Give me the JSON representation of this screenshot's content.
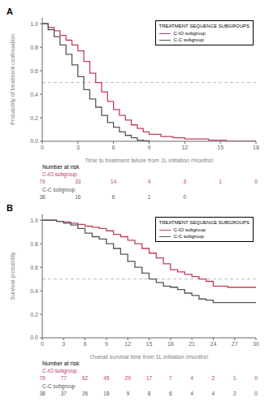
{
  "chart_data": [
    {
      "type": "line",
      "panel_label": "A",
      "title": "TREATMENT SEQUENCE SUBGROUPS",
      "xlabel": "Time to treatment failure from 1L initiation (months)",
      "ylabel": "Probability of treatment continuation",
      "xlim": [
        0,
        18
      ],
      "ylim": [
        0,
        1.05
      ],
      "xticks": [
        0,
        3,
        6,
        9,
        12,
        15,
        18
      ],
      "yticks": [
        {
          "value": 0.0,
          "label": "0.0"
        },
        {
          "value": 0.2,
          "label": "0.2"
        },
        {
          "value": 0.4,
          "label": "0.4"
        },
        {
          "value": 0.6,
          "label": "0.6"
        },
        {
          "value": 0.8,
          "label": "0.8"
        },
        {
          "value": 1.0,
          "label": "1.0"
        }
      ],
      "grid": false,
      "legend": "upper right",
      "line_style": "step",
      "hline": 0.5,
      "series": [
        {
          "name": "C-IO subgroup",
          "color": "#c0405a",
          "x": [
            0,
            0.5,
            1.0,
            1.5,
            2.0,
            2.5,
            3.0,
            3.5,
            4.0,
            4.5,
            5.0,
            5.5,
            6.0,
            6.5,
            7.0,
            7.5,
            8.0,
            8.5,
            9.0,
            10.0,
            11.0,
            12.0,
            13.0,
            14.0,
            15.0,
            15.5,
            18.0
          ],
          "values": [
            1.0,
            0.97,
            0.94,
            0.9,
            0.86,
            0.82,
            0.77,
            0.68,
            0.58,
            0.5,
            0.42,
            0.34,
            0.27,
            0.22,
            0.18,
            0.14,
            0.11,
            0.08,
            0.06,
            0.04,
            0.03,
            0.02,
            0.02,
            0.01,
            0.01,
            0.0,
            0.0
          ]
        },
        {
          "name": "C-C subgroup",
          "color": "#555555",
          "x": [
            0,
            0.5,
            1.0,
            1.5,
            2.0,
            2.5,
            3.0,
            3.5,
            4.0,
            4.5,
            5.0,
            5.5,
            6.0,
            6.5,
            7.0,
            7.5,
            8.0,
            8.5,
            9.0
          ],
          "values": [
            1.0,
            0.95,
            0.89,
            0.82,
            0.74,
            0.65,
            0.55,
            0.44,
            0.36,
            0.29,
            0.22,
            0.16,
            0.12,
            0.08,
            0.05,
            0.03,
            0.01,
            0.005,
            0.0
          ]
        }
      ],
      "risk_table": {
        "title": "Number at risk",
        "x": [
          0,
          3,
          6,
          9,
          12,
          15,
          18
        ],
        "rows": [
          {
            "name": "C-IO subgroup",
            "color": "#c0405a",
            "values": [
              79,
              33,
              14,
              4,
              3,
              1,
              0
            ]
          },
          {
            "name": "C-C subgroup",
            "color": "#555555",
            "values": [
              38,
              16,
              6,
              1,
              0,
              null,
              null
            ]
          }
        ]
      }
    },
    {
      "type": "line",
      "panel_label": "B",
      "title": "TREATMENT SEQUENCE SUBGROUPS",
      "xlabel": "Overall survival time from 1L initiation (months)",
      "ylabel": "Survival probability",
      "xlim": [
        0,
        30
      ],
      "ylim": [
        0,
        1.05
      ],
      "xticks": [
        0,
        3,
        6,
        9,
        12,
        15,
        18,
        21,
        24,
        27,
        30
      ],
      "yticks": [
        {
          "value": 0.0,
          "label": "0.0"
        },
        {
          "value": 0.2,
          "label": "0.2"
        },
        {
          "value": 0.4,
          "label": "0.4"
        },
        {
          "value": 0.6,
          "label": "0.6"
        },
        {
          "value": 0.8,
          "label": "0.8"
        },
        {
          "value": 1.0,
          "label": "1.0"
        }
      ],
      "grid": false,
      "legend": "upper right",
      "line_style": "step",
      "hline": 0.5,
      "series": [
        {
          "name": "C-IO subgroup",
          "color": "#c0405a",
          "x": [
            0,
            1,
            2,
            3,
            4,
            5,
            6,
            7,
            8,
            9,
            10,
            11,
            12,
            13,
            14,
            15,
            16,
            17,
            18,
            19,
            20,
            21,
            22,
            23,
            24,
            25,
            26,
            27,
            28,
            30
          ],
          "values": [
            1.0,
            1.0,
            0.99,
            0.985,
            0.975,
            0.965,
            0.95,
            0.94,
            0.93,
            0.91,
            0.88,
            0.86,
            0.83,
            0.8,
            0.76,
            0.72,
            0.68,
            0.63,
            0.58,
            0.56,
            0.54,
            0.52,
            0.5,
            0.48,
            0.44,
            0.44,
            0.43,
            0.43,
            0.43,
            0.43
          ]
        },
        {
          "name": "C-C subgroup",
          "color": "#555555",
          "x": [
            0,
            1,
            2,
            3,
            4,
            5,
            6,
            7,
            8,
            9,
            10,
            11,
            12,
            13,
            14,
            15,
            16,
            17,
            18,
            19,
            20,
            21,
            22,
            23,
            24,
            25,
            26,
            27,
            28,
            30
          ],
          "values": [
            1.0,
            1.0,
            0.99,
            0.975,
            0.96,
            0.93,
            0.89,
            0.86,
            0.84,
            0.8,
            0.76,
            0.71,
            0.65,
            0.6,
            0.55,
            0.5,
            0.47,
            0.44,
            0.43,
            0.41,
            0.38,
            0.36,
            0.33,
            0.32,
            0.3,
            0.3,
            0.3,
            0.3,
            0.3,
            0.3
          ]
        }
      ],
      "risk_table": {
        "title": "Number at risk",
        "x": [
          0,
          3,
          6,
          9,
          12,
          15,
          18,
          21,
          24,
          27,
          30
        ],
        "rows": [
          {
            "name": "C-IO subgroup",
            "color": "#c0405a",
            "values": [
              79,
              77,
              62,
              45,
              29,
              17,
              7,
              4,
              2,
              1,
              0
            ]
          },
          {
            "name": "C-C subgroup",
            "color": "#555555",
            "values": [
              38,
              37,
              26,
              18,
              9,
              8,
              6,
              4,
              4,
              2,
              0
            ]
          }
        ]
      }
    }
  ]
}
